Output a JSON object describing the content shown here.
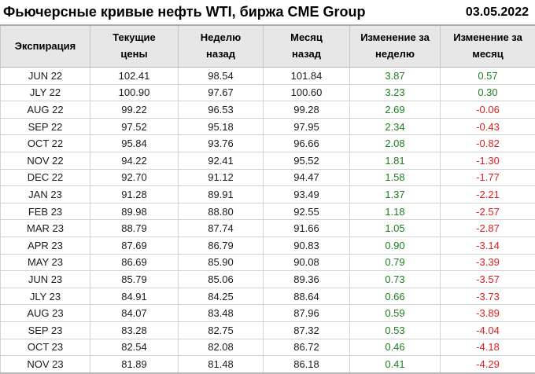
{
  "header": {
    "title": "Фьючерсные кривые нефть WTI, биржа CME Group",
    "date": "03.05.2022"
  },
  "colors": {
    "positive": "#1d7d22",
    "negative": "#db2020",
    "header_bg": "#e7e7e7",
    "border": "#c6c6c6"
  },
  "chart_data": {
    "type": "table",
    "title": "Фьючерсные кривые нефть WTI, биржа CME Group",
    "date_label": "03.05.2022",
    "columns": [
      "Экспирация",
      "Текущие цены",
      "Неделю назад",
      "Месяц назад",
      "Изменение за неделю",
      "Изменение за месяц"
    ],
    "column_display": [
      "Экспирация",
      "Текущие\nцены",
      "Неделю\nназад",
      "Месяц\nназад",
      "Изменение за\nнеделю",
      "Изменение за\nмесяц"
    ],
    "colorized_columns": [
      4,
      5
    ],
    "rows": [
      [
        "JUN 22",
        "102.41",
        "98.54",
        "101.84",
        "3.87",
        "0.57"
      ],
      [
        "JLY 22",
        "100.90",
        "97.67",
        "100.60",
        "3.23",
        "0.30"
      ],
      [
        "AUG 22",
        "99.22",
        "96.53",
        "99.28",
        "2.69",
        "-0.06"
      ],
      [
        "SEP 22",
        "97.52",
        "95.18",
        "97.95",
        "2.34",
        "-0.43"
      ],
      [
        "OCT 22",
        "95.84",
        "93.76",
        "96.66",
        "2.08",
        "-0.82"
      ],
      [
        "NOV 22",
        "94.22",
        "92.41",
        "95.52",
        "1.81",
        "-1.30"
      ],
      [
        "DEC 22",
        "92.70",
        "91.12",
        "94.47",
        "1.58",
        "-1.77"
      ],
      [
        "JAN 23",
        "91.28",
        "89.91",
        "93.49",
        "1.37",
        "-2.21"
      ],
      [
        "FEB 23",
        "89.98",
        "88.80",
        "92.55",
        "1.18",
        "-2.57"
      ],
      [
        "MAR 23",
        "88.79",
        "87.74",
        "91.66",
        "1.05",
        "-2.87"
      ],
      [
        "APR 23",
        "87.69",
        "86.79",
        "90.83",
        "0.90",
        "-3.14"
      ],
      [
        "MAY 23",
        "86.69",
        "85.90",
        "90.08",
        "0.79",
        "-3.39"
      ],
      [
        "JUN 23",
        "85.79",
        "85.06",
        "89.36",
        "0.73",
        "-3.57"
      ],
      [
        "JLY 23",
        "84.91",
        "84.25",
        "88.64",
        "0.66",
        "-3.73"
      ],
      [
        "AUG 23",
        "84.07",
        "83.48",
        "87.96",
        "0.59",
        "-3.89"
      ],
      [
        "SEP 23",
        "83.28",
        "82.75",
        "87.32",
        "0.53",
        "-4.04"
      ],
      [
        "OCT 23",
        "82.54",
        "82.08",
        "86.72",
        "0.46",
        "-4.18"
      ],
      [
        "NOV 23",
        "81.89",
        "81.48",
        "86.18",
        "0.41",
        "-4.29"
      ]
    ]
  }
}
